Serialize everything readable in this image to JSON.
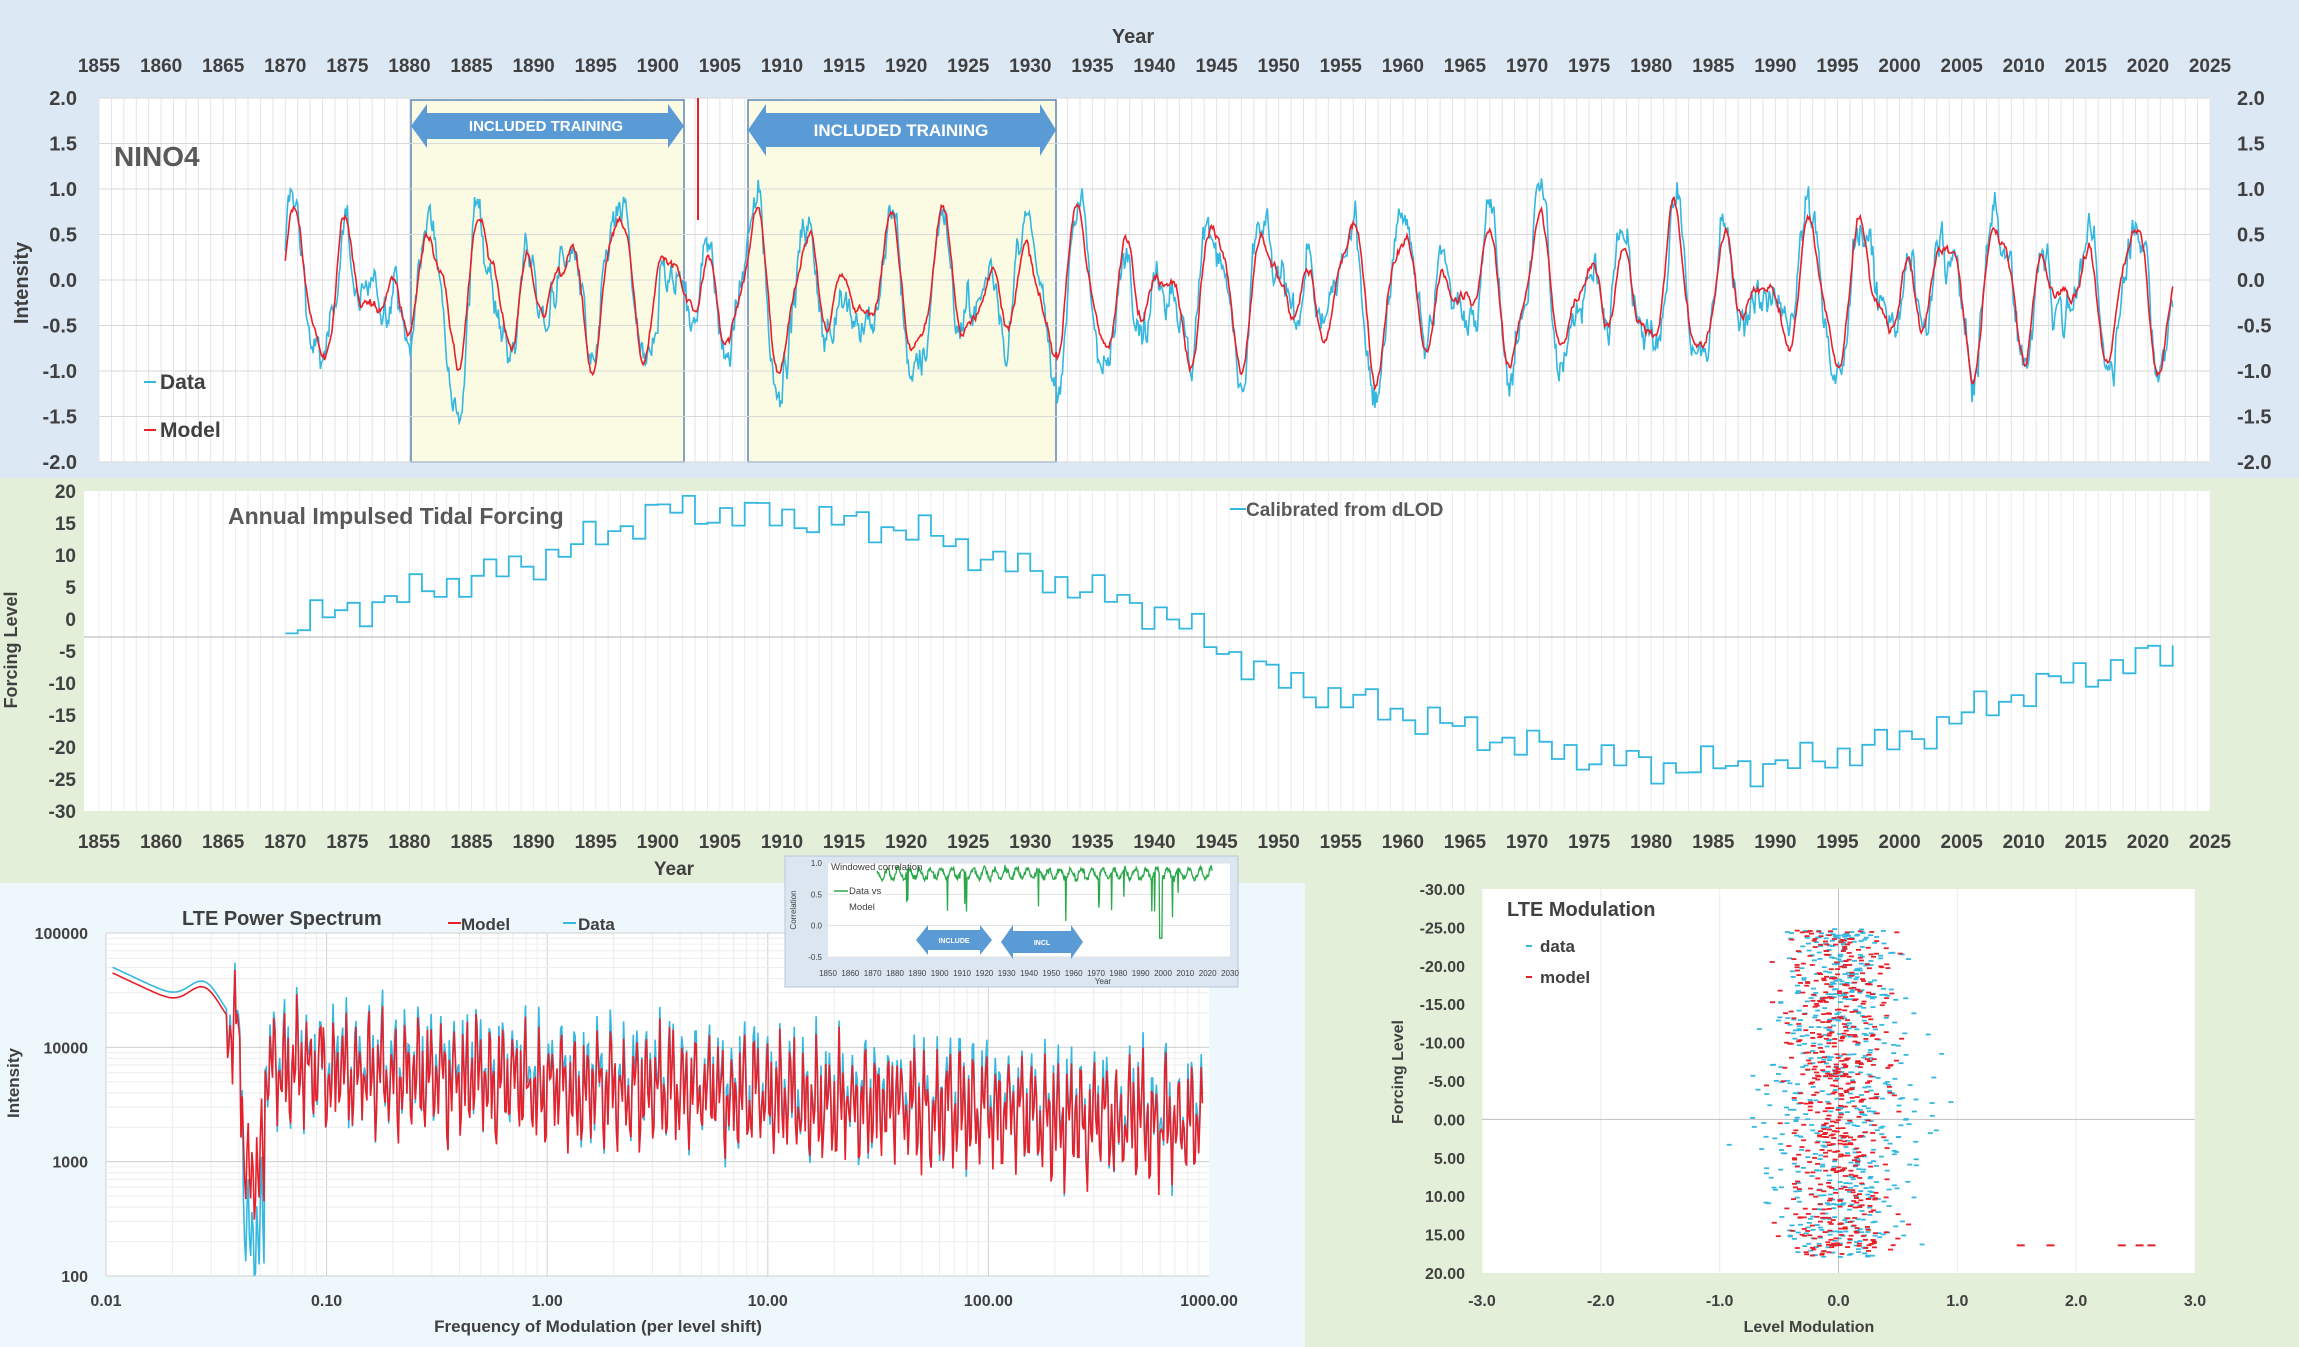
{
  "colors": {
    "data": "#35b8e0",
    "model": "#e8202a",
    "forcing": "#35b8e0",
    "corr": "#2aa84a",
    "bg_top": "#dce8f4",
    "bg_mid": "#e3efd9",
    "bg_spec": "#eef8fc",
    "bg_mod": "#e3efd9",
    "train_fill": "#fbfbe3",
    "arrow": "#5b9bd5",
    "grid": "#e6e6e6"
  },
  "top": {
    "x_title": "Year",
    "label": "NINO4",
    "y_title": "Intensity",
    "legend": {
      "data": "Data",
      "model": "Model"
    },
    "training_label_1": "INCLUDED TRAINING",
    "training_label_2": "INCLUDED TRAINING"
  },
  "middle": {
    "title": "Annual Impulsed Tidal Forcing",
    "legend": "Calibrated from dLOD",
    "y_title": "Forcing Level",
    "x_title": "Year"
  },
  "inset": {
    "title": "Windowed correlation",
    "legend_l1": "Data vs",
    "legend_l2": "Model",
    "y_title": "Correlation",
    "x_title": "Year",
    "arrow1": "INCLUDE",
    "arrow2": "INCL"
  },
  "spectrum": {
    "title": "LTE Power Spectrum",
    "legend": {
      "model": "Model",
      "data": "Data"
    },
    "y_title": "Intensity",
    "x_title": "Frequency of Modulation (per level shift)"
  },
  "modulation": {
    "title": "LTE Modulation",
    "legend": {
      "data": "data",
      "model": "model"
    },
    "y_title": "Forcing Level",
    "x_title": "Level Modulation"
  },
  "chart_data": [
    {
      "type": "line",
      "name": "NINO4",
      "xlabel": "Year",
      "ylabel": "Intensity",
      "xlim": [
        1855,
        2025
      ],
      "ylim": [
        -2.0,
        2.0
      ],
      "x_ticks": [
        "1855",
        "1860",
        "1865",
        "1870",
        "1875",
        "1880",
        "1885",
        "1890",
        "1895",
        "1900",
        "1905",
        "1910",
        "1915",
        "1920",
        "1925",
        "1930",
        "1935",
        "1940",
        "1945",
        "1950",
        "1955",
        "1960",
        "1965",
        "1970",
        "1975",
        "1980",
        "1985",
        "1990",
        "1995",
        "2000",
        "2005",
        "2010",
        "2015",
        "2020",
        "2025"
      ],
      "y_ticks": [
        "2.0",
        "1.5",
        "1.0",
        "0.5",
        "0.0",
        "-0.5",
        "-1.0",
        "-1.5",
        "-2.0"
      ],
      "training_windows": [
        [
          1880,
          1902
        ],
        [
          1907,
          1932
        ]
      ],
      "series": [
        {
          "name": "Data",
          "range": [
            1870,
            2022
          ]
        },
        {
          "name": "Model",
          "range": [
            1870,
            2022
          ]
        }
      ]
    },
    {
      "type": "line",
      "name": "Annual Impulsed Tidal Forcing",
      "xlabel": "Year",
      "ylabel": "Forcing Level",
      "xlim": [
        1855,
        2025
      ],
      "ylim": [
        -30,
        20
      ],
      "y_ticks": [
        "20",
        "15",
        "10",
        "5",
        "0",
        "-5",
        "-10",
        "-15",
        "-20",
        "-25",
        "-30"
      ],
      "series": [
        {
          "name": "Calibrated from dLOD",
          "x": [
            1870,
            1880,
            1890,
            1900,
            1910,
            1920,
            1930,
            1940,
            1950,
            1960,
            1970,
            1980,
            1990,
            2000,
            2010,
            2020,
            2022
          ],
          "y": [
            -1,
            4,
            9,
            17,
            16,
            14,
            7,
            1,
            -10,
            -15,
            -20,
            -23,
            -23,
            -19,
            -11,
            -6,
            -5
          ]
        }
      ]
    },
    {
      "type": "line",
      "name": "Windowed correlation",
      "ylim": [
        -0.5,
        1.0
      ],
      "y_ticks": [
        "1.0",
        "0.5",
        "0.0",
        "-0.5"
      ],
      "x_ticks": [
        "1850",
        "1860",
        "1870",
        "1880",
        "1890",
        "1900",
        "1910",
        "1920",
        "1930",
        "1940",
        "1950",
        "1960",
        "1970",
        "1980",
        "1990",
        "2000",
        "2010",
        "2020",
        "2030"
      ],
      "series": [
        {
          "name": "Data vs Model",
          "range": [
            1872,
            2022
          ]
        }
      ]
    },
    {
      "type": "line",
      "name": "LTE Power Spectrum",
      "xscale": "log",
      "yscale": "log",
      "xlim": [
        0.01,
        1000
      ],
      "ylim": [
        100,
        100000
      ],
      "x_ticks": [
        "0.01",
        "0.10",
        "1.00",
        "10.00",
        "100.00",
        "1000.00"
      ],
      "y_ticks": [
        "100000",
        "10000",
        "1000",
        "100"
      ],
      "series": [
        {
          "name": "Model"
        },
        {
          "name": "Data"
        }
      ]
    },
    {
      "type": "scatter",
      "name": "LTE Modulation",
      "xlim": [
        -3.0,
        3.0
      ],
      "ylim": [
        20.0,
        -30.0
      ],
      "x_ticks": [
        "-3.0",
        "-2.0",
        "-1.0",
        "0.0",
        "1.0",
        "2.0",
        "3.0"
      ],
      "y_ticks": [
        "-30.00",
        "-25.00",
        "-20.00",
        "-15.00",
        "-10.00",
        "-5.00",
        "0.00",
        "5.00",
        "10.00",
        "15.00",
        "20.00"
      ],
      "series": [
        {
          "name": "data"
        },
        {
          "name": "model"
        }
      ]
    }
  ]
}
